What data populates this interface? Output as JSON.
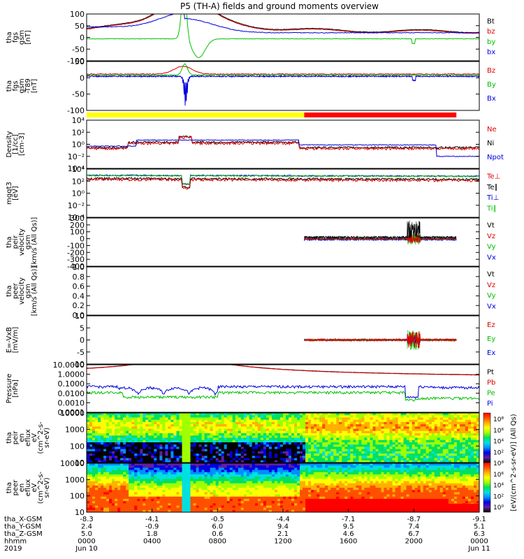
{
  "chart_data": {
    "type": "line",
    "title": "P5 (TH-A) fields and ground moments overview",
    "panels": [
      {
        "id": "fgs-b",
        "ylabel": [
          "tha",
          "fgs",
          "gsm",
          "[nT]"
        ],
        "ylim": [
          -100,
          100
        ],
        "ticks": [
          "100",
          "50",
          "0",
          "-50",
          "-100"
        ],
        "legend": [
          "Bt",
          "bz",
          "by",
          "bx"
        ],
        "legend_colors": [
          "#000000",
          "#e00000",
          "#00c000",
          "#0000e0"
        ]
      },
      {
        "id": "fgs-b-dtrend",
        "ylabel": [
          "tha",
          "fgs",
          "gsm",
          "-T89",
          "[nT]"
        ],
        "ylim": [
          -125,
          50
        ],
        "ticks": [
          "50",
          "0",
          "-50",
          "-100"
        ],
        "legend": [
          "Bz",
          "By",
          "Bx"
        ],
        "legend_colors": [
          "#e00000",
          "#00c000",
          "#0000e0"
        ]
      },
      {
        "id": "density",
        "ylabel": [
          "Density",
          "[1/cc]",
          "[cm-3]"
        ],
        "ylim": [
          0.0001,
          10000
        ],
        "log": true,
        "ticks": [
          "10⁴",
          "10²",
          "10⁰",
          "10⁻²",
          "10⁻⁴"
        ],
        "legend": [
          "Ne",
          "Ni",
          "Npot"
        ],
        "legend_colors": [
          "#e00000",
          "#000000",
          "#0000e0"
        ]
      },
      {
        "id": "temperature",
        "ylabel": [
          "mgqt3",
          "[eV]"
        ],
        "ylim": [
          0.0001,
          10000
        ],
        "log": true,
        "ticks": [
          "10⁴",
          "10²",
          "10⁰",
          "10⁻²",
          "10⁻⁴"
        ],
        "legend": [
          "Te⊥",
          "Te∥",
          "Ti⊥",
          "Ti∥"
        ],
        "legend_colors": [
          "#e00000",
          "#000000",
          "#0000e0",
          "#00c000"
        ]
      },
      {
        "id": "peir-velocity",
        "ylabel": [
          "tha",
          "peir",
          "velocity",
          "gsm",
          "[km/s (All Qs)]"
        ],
        "ylim": [
          -400,
          300
        ],
        "ticks": [
          "300",
          "200",
          "100",
          "0",
          "-100",
          "-200",
          "-300",
          "-400"
        ],
        "legend": [
          "Vt",
          "Vz",
          "Vy",
          "Vx"
        ],
        "legend_colors": [
          "#000000",
          "#e00000",
          "#00c000",
          "#0000e0"
        ]
      },
      {
        "id": "peer-velocity",
        "ylabel": [
          "tha",
          "peer",
          "velocity",
          "gsm",
          "[km/s (All Qs)]"
        ],
        "ylim": [
          0,
          1
        ],
        "ticks": [
          "1.0",
          "0.8",
          "0.6",
          "0.4",
          "0.2",
          "0.0"
        ],
        "legend": [
          "Vt",
          "Vz",
          "Vy",
          "Vx"
        ],
        "legend_colors": [
          "#000000",
          "#e00000",
          "#00c000",
          "#0000e0"
        ]
      },
      {
        "id": "efield",
        "ylabel": [
          "E=-VxB",
          "[mV/m]"
        ],
        "ylim": [
          -10,
          10
        ],
        "ticks": [
          "10",
          "5",
          "0",
          "-5",
          "-10"
        ],
        "legend": [
          "Ez",
          "Ey",
          "Ex"
        ],
        "legend_colors": [
          "#e00000",
          "#00c000",
          "#0000e0"
        ]
      },
      {
        "id": "pressure",
        "ylabel": [
          "Pressure",
          "[nPa]"
        ],
        "ylim": [
          0.0001,
          10
        ],
        "log": true,
        "ticks": [
          "10.0000",
          "1.0000",
          "0.1000",
          "0.0100",
          "0.0010",
          "0.0001"
        ],
        "legend": [
          "Pt",
          "Pb",
          "Pe",
          "Pi"
        ],
        "legend_colors": [
          "#000000",
          "#e00000",
          "#00c000",
          "#0000e0"
        ]
      },
      {
        "id": "peir-spec",
        "type": "heatmap",
        "ylabel": [
          "tha",
          "peir",
          "en",
          "eflux",
          "eV",
          "(cm^2-s-",
          "sr-eV)"
        ],
        "ylim": [
          5,
          25000
        ],
        "log": true,
        "ticks": [
          "10000",
          "1000",
          "100",
          "10"
        ]
      },
      {
        "id": "peer-spec",
        "type": "heatmap",
        "ylabel": [
          "tha",
          "peer",
          "en",
          "eflux",
          "eV",
          "(cm^2-s-",
          "sr-eV)"
        ],
        "ylim": [
          5,
          25000
        ],
        "log": true,
        "ticks": [
          "10000",
          "1000",
          "100",
          "10"
        ]
      }
    ],
    "colorbar": {
      "label": "[eV/(cm^2-s-sr-eV)] (All Qs)",
      "ticks": [
        "10⁸",
        "10⁶",
        "10⁴",
        "10²",
        "10⁸",
        "10⁶",
        "10⁴",
        "10²",
        "10⁰"
      ]
    },
    "mode_bar": {
      "segments": [
        {
          "from": 0.0,
          "to": 13.3,
          "color": "#ffff00"
        },
        {
          "from": 13.3,
          "to": 22.6,
          "color": "#ff0000"
        }
      ]
    },
    "x": {
      "range_hours": [
        0,
        24
      ],
      "rows": [
        {
          "label": "tha_X-GSM",
          "values": [
            "-8.3",
            "-4.1",
            "-0.5",
            "-4.4",
            "-7.1",
            "-8.7",
            "-9.1"
          ]
        },
        {
          "label": "tha_Y-GSM",
          "values": [
            "2.4",
            "-0.9",
            "6.0",
            "9.4",
            "9.5",
            "7.4",
            "5.1"
          ]
        },
        {
          "label": "tha_Z-GSM",
          "values": [
            "5.0",
            "1.8",
            "0.6",
            "2.1",
            "4.6",
            "6.7",
            "6.3"
          ]
        },
        {
          "label": "hhmm",
          "values": [
            "0000",
            "0400",
            "0800",
            "1200",
            "1600",
            "2000",
            "0000"
          ]
        },
        {
          "label": "2019",
          "values": [
            "Jun 10",
            "",
            "",
            "",
            "",
            "",
            "Jun 11"
          ]
        }
      ]
    }
  }
}
